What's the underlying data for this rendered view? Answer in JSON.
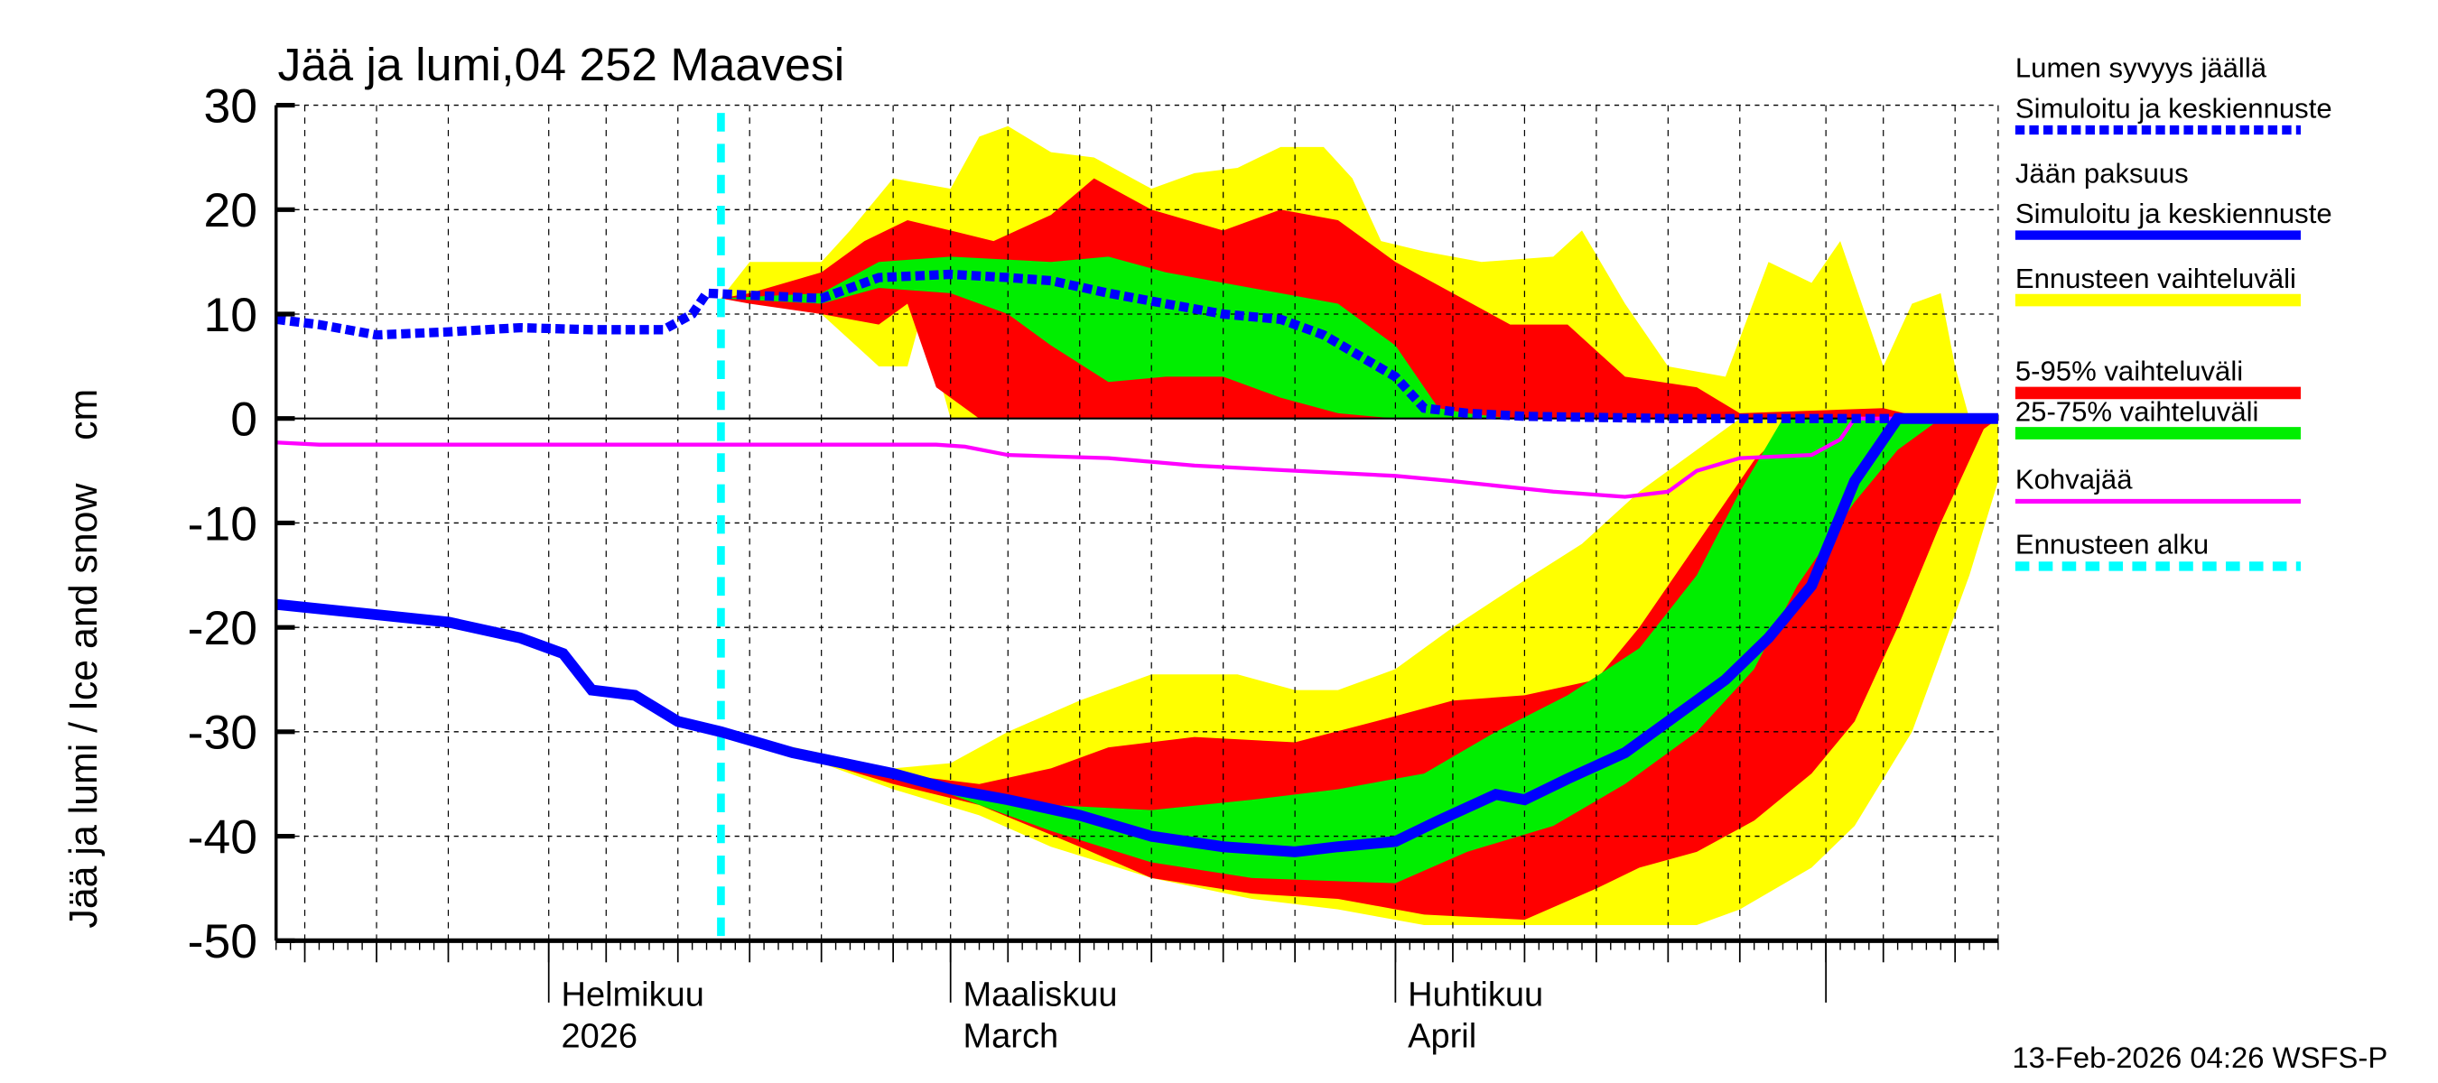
{
  "chart_data": {
    "type": "area",
    "title": "Jää ja lumi,04 252 Maavesi",
    "ylabel": "Jää ja lumi / Ice and snow    cm",
    "ylim": [
      -50,
      30
    ],
    "yticks": [
      30,
      20,
      10,
      0,
      -10,
      -20,
      -30,
      -40,
      -50
    ],
    "xlim": [
      "2026-01-13",
      "2026-05-13"
    ],
    "grid": true,
    "legend_placement": "right",
    "month_labels": [
      {
        "date": "2026-02-01",
        "line1": "Helmikuu",
        "line2": "2026"
      },
      {
        "date": "2026-03-01",
        "line1": "Maaliskuu",
        "line2": "March"
      },
      {
        "date": "2026-04-01",
        "line1": "Huhtikuu",
        "line2": "April"
      },
      {
        "date": "2026-05-01",
        "line1": "",
        "line2": ""
      }
    ],
    "forecast_start": "2026-02-13",
    "footer": "13-Feb-2026 04:26 WSFS-P",
    "colors": {
      "snow": "#0000ff",
      "ice": "#0000ff",
      "range": "#ffff00",
      "p5_95": "#ff0000",
      "p25_75": "#00ee00",
      "kohva": "#ff00ff",
      "forecast_start": "#00ffff"
    },
    "legend": [
      {
        "line1": "Lumen syvyys jäällä",
        "line2": "Simuloitu ja keskiennuste",
        "color": "#0000ff",
        "style": "dashed"
      },
      {
        "line1": "Jään paksuus",
        "line2": "Simuloitu ja keskiennuste",
        "color": "#0000ff",
        "style": "solid"
      },
      {
        "line1": "Ennusteen vaihteluväli",
        "line2": "",
        "color": "#ffff00",
        "style": "band"
      },
      {
        "line1": "5-95% vaihteluväli",
        "line2": "",
        "color": "#ff0000",
        "style": "band"
      },
      {
        "line1": "25-75% vaihteluväli",
        "line2": "",
        "color": "#00ee00",
        "style": "band"
      },
      {
        "line1": "Kohvajää",
        "line2": "",
        "color": "#ff00ff",
        "style": "thin"
      },
      {
        "line1": "Ennusteen alku",
        "line2": "",
        "color": "#00ffff",
        "style": "dashed"
      }
    ],
    "snow_bands": {
      "range_max": [
        [
          "2026-02-13",
          11.5
        ],
        [
          "2026-02-15",
          15
        ],
        [
          "2026-02-20",
          15
        ],
        [
          "2026-02-22",
          18
        ],
        [
          "2026-02-25",
          23
        ],
        [
          "2026-03-01",
          22
        ],
        [
          "2026-03-03",
          27
        ],
        [
          "2026-03-05",
          28
        ],
        [
          "2026-03-08",
          25.5
        ],
        [
          "2026-03-11",
          25
        ],
        [
          "2026-03-15",
          22
        ],
        [
          "2026-03-18",
          23.5
        ],
        [
          "2026-03-21",
          24
        ],
        [
          "2026-03-24",
          26
        ],
        [
          "2026-03-27",
          26
        ],
        [
          "2026-03-29",
          23
        ],
        [
          "2026-03-31",
          17
        ],
        [
          "2026-04-03",
          16
        ],
        [
          "2026-04-07",
          15
        ],
        [
          "2026-04-12",
          15.5
        ],
        [
          "2026-04-14",
          18
        ],
        [
          "2026-04-17",
          11
        ],
        [
          "2026-04-20",
          5
        ],
        [
          "2026-04-24",
          4
        ],
        [
          "2026-04-27",
          15
        ],
        [
          "2026-04-30",
          13
        ],
        [
          "2026-05-02",
          17
        ],
        [
          "2026-05-05",
          5
        ],
        [
          "2026-05-07",
          11
        ],
        [
          "2026-05-09",
          12
        ],
        [
          "2026-05-10",
          5
        ],
        [
          "2026-05-11",
          0
        ],
        [
          "2026-05-13",
          0
        ]
      ],
      "range_min": [
        [
          "2026-02-13",
          11.5
        ],
        [
          "2026-02-20",
          10
        ],
        [
          "2026-02-24",
          5
        ],
        [
          "2026-02-26",
          5
        ],
        [
          "2026-02-27",
          10
        ],
        [
          "2026-03-01",
          0
        ],
        [
          "2026-05-13",
          0
        ]
      ],
      "p95": [
        [
          "2026-02-13",
          11.5
        ],
        [
          "2026-02-15",
          12
        ],
        [
          "2026-02-20",
          14
        ],
        [
          "2026-02-23",
          17
        ],
        [
          "2026-02-26",
          19
        ],
        [
          "2026-03-01",
          18
        ],
        [
          "2026-03-04",
          17
        ],
        [
          "2026-03-08",
          19.5
        ],
        [
          "2026-03-11",
          23
        ],
        [
          "2026-03-15",
          20
        ],
        [
          "2026-03-20",
          18
        ],
        [
          "2026-03-24",
          20
        ],
        [
          "2026-03-28",
          19
        ],
        [
          "2026-04-01",
          15
        ],
        [
          "2026-04-05",
          12
        ],
        [
          "2026-04-09",
          9
        ],
        [
          "2026-04-13",
          9
        ],
        [
          "2026-04-17",
          4
        ],
        [
          "2026-04-22",
          3
        ],
        [
          "2026-04-25",
          0.5
        ],
        [
          "2026-05-05",
          1
        ],
        [
          "2026-05-08",
          0
        ],
        [
          "2026-05-13",
          0
        ]
      ],
      "p5": [
        [
          "2026-02-13",
          11.5
        ],
        [
          "2026-02-15",
          11
        ],
        [
          "2026-02-20",
          10
        ],
        [
          "2026-02-24",
          9
        ],
        [
          "2026-02-26",
          11
        ],
        [
          "2026-02-28",
          3
        ],
        [
          "2026-03-03",
          0
        ],
        [
          "2026-05-13",
          0
        ]
      ],
      "p75": [
        [
          "2026-02-13",
          11.5
        ],
        [
          "2026-02-20",
          12
        ],
        [
          "2026-02-24",
          15
        ],
        [
          "2026-03-01",
          15.5
        ],
        [
          "2026-03-08",
          15
        ],
        [
          "2026-03-12",
          15.5
        ],
        [
          "2026-03-16",
          14
        ],
        [
          "2026-03-20",
          13
        ],
        [
          "2026-03-24",
          12
        ],
        [
          "2026-03-28",
          11
        ],
        [
          "2026-04-01",
          7
        ],
        [
          "2026-04-04",
          1
        ],
        [
          "2026-04-06",
          0.5
        ],
        [
          "2026-04-09",
          0
        ],
        [
          "2026-05-13",
          0
        ]
      ],
      "p25": [
        [
          "2026-02-13",
          11.5
        ],
        [
          "2026-02-20",
          11
        ],
        [
          "2026-02-24",
          12.5
        ],
        [
          "2026-03-01",
          12
        ],
        [
          "2026-03-05",
          10
        ],
        [
          "2026-03-08",
          7
        ],
        [
          "2026-03-12",
          3.5
        ],
        [
          "2026-03-16",
          4
        ],
        [
          "2026-03-20",
          4
        ],
        [
          "2026-03-24",
          2
        ],
        [
          "2026-03-28",
          0.5
        ],
        [
          "2026-04-01",
          0
        ],
        [
          "2026-05-13",
          0
        ]
      ]
    },
    "ice_bands": {
      "range_max": [
        [
          "2026-02-13",
          -30
        ],
        [
          "2026-02-25",
          -33.5
        ],
        [
          "2026-03-01",
          -33
        ],
        [
          "2026-03-05",
          -30
        ],
        [
          "2026-03-10",
          -27
        ],
        [
          "2026-03-15",
          -24.5
        ],
        [
          "2026-03-21",
          -24.5
        ],
        [
          "2026-03-25",
          -26
        ],
        [
          "2026-03-28",
          -26
        ],
        [
          "2026-04-01",
          -24
        ],
        [
          "2026-04-05",
          -20
        ],
        [
          "2026-04-10",
          -15.5
        ],
        [
          "2026-04-14",
          -12
        ],
        [
          "2026-04-18",
          -7
        ],
        [
          "2026-04-22",
          -3
        ],
        [
          "2026-04-25",
          0
        ],
        [
          "2026-05-13",
          0
        ]
      ],
      "range_min": [
        [
          "2026-02-13",
          -30
        ],
        [
          "2026-02-20",
          -33
        ],
        [
          "2026-02-25",
          -35.5
        ],
        [
          "2026-03-03",
          -38
        ],
        [
          "2026-03-08",
          -41
        ],
        [
          "2026-03-15",
          -44
        ],
        [
          "2026-03-22",
          -46
        ],
        [
          "2026-03-28",
          -47
        ],
        [
          "2026-04-03",
          -48.5
        ],
        [
          "2026-04-22",
          -48.5
        ],
        [
          "2026-04-25",
          -47
        ],
        [
          "2026-04-30",
          -43
        ],
        [
          "2026-05-03",
          -39
        ],
        [
          "2026-05-07",
          -30
        ],
        [
          "2026-05-11",
          -15
        ],
        [
          "2026-05-13",
          -6
        ]
      ],
      "p95": [
        [
          "2026-02-13",
          -30
        ],
        [
          "2026-02-25",
          -34
        ],
        [
          "2026-03-03",
          -35
        ],
        [
          "2026-03-08",
          -33.5
        ],
        [
          "2026-03-12",
          -31.5
        ],
        [
          "2026-03-18",
          -30.5
        ],
        [
          "2026-03-25",
          -31
        ],
        [
          "2026-04-01",
          -28.5
        ],
        [
          "2026-04-05",
          -27
        ],
        [
          "2026-04-10",
          -26.5
        ],
        [
          "2026-04-15",
          -25
        ],
        [
          "2026-04-18",
          -20
        ],
        [
          "2026-04-22",
          -12
        ],
        [
          "2026-04-26",
          -4
        ],
        [
          "2026-04-29",
          0
        ],
        [
          "2026-05-13",
          0
        ]
      ],
      "p5": [
        [
          "2026-02-13",
          -30
        ],
        [
          "2026-02-25",
          -35
        ],
        [
          "2026-03-03",
          -37
        ],
        [
          "2026-03-10",
          -41
        ],
        [
          "2026-03-15",
          -44
        ],
        [
          "2026-03-22",
          -45.5
        ],
        [
          "2026-03-28",
          -46
        ],
        [
          "2026-04-03",
          -47.5
        ],
        [
          "2026-04-10",
          -48
        ],
        [
          "2026-04-15",
          -45
        ],
        [
          "2026-04-18",
          -43
        ],
        [
          "2026-04-22",
          -41.5
        ],
        [
          "2026-04-26",
          -38.5
        ],
        [
          "2026-04-30",
          -34
        ],
        [
          "2026-05-03",
          -29
        ],
        [
          "2026-05-06",
          -20
        ],
        [
          "2026-05-09",
          -10
        ],
        [
          "2026-05-12",
          -1
        ],
        [
          "2026-05-13",
          0
        ]
      ],
      "p75": [
        [
          "2026-02-13",
          -30
        ],
        [
          "2026-03-01",
          -35.5
        ],
        [
          "2026-03-08",
          -37
        ],
        [
          "2026-03-15",
          -37.5
        ],
        [
          "2026-03-22",
          -36.5
        ],
        [
          "2026-03-28",
          -35.5
        ],
        [
          "2026-04-03",
          -34
        ],
        [
          "2026-04-08",
          -30
        ],
        [
          "2026-04-13",
          -26.5
        ],
        [
          "2026-04-18",
          -22
        ],
        [
          "2026-04-22",
          -15
        ],
        [
          "2026-04-25",
          -7
        ],
        [
          "2026-04-28",
          0
        ],
        [
          "2026-05-13",
          0
        ]
      ],
      "p25": [
        [
          "2026-02-13",
          -30
        ],
        [
          "2026-03-01",
          -36
        ],
        [
          "2026-03-08",
          -39.5
        ],
        [
          "2026-03-15",
          -42.5
        ],
        [
          "2026-03-22",
          -44
        ],
        [
          "2026-04-01",
          -44.5
        ],
        [
          "2026-04-06",
          -41.5
        ],
        [
          "2026-04-12",
          -39
        ],
        [
          "2026-04-17",
          -35
        ],
        [
          "2026-04-22",
          -30
        ],
        [
          "2026-04-26",
          -24
        ],
        [
          "2026-04-29",
          -16
        ],
        [
          "2026-05-03",
          -8
        ],
        [
          "2026-05-06",
          -3
        ],
        [
          "2026-05-09",
          0
        ],
        [
          "2026-05-13",
          0
        ]
      ]
    },
    "snow_depth": [
      [
        "2026-01-13",
        9.5
      ],
      [
        "2026-01-16",
        9
      ],
      [
        "2026-01-20",
        8
      ],
      [
        "2026-01-25",
        8.3
      ],
      [
        "2026-01-30",
        8.7
      ],
      [
        "2026-02-04",
        8.5
      ],
      [
        "2026-02-09",
        8.5
      ],
      [
        "2026-02-11",
        10
      ],
      [
        "2026-02-12",
        12
      ],
      [
        "2026-02-15",
        11.8
      ],
      [
        "2026-02-20",
        11.5
      ],
      [
        "2026-02-24",
        13.5
      ],
      [
        "2026-03-01",
        13.8
      ],
      [
        "2026-03-05",
        13.5
      ],
      [
        "2026-03-08",
        13.2
      ],
      [
        "2026-03-12",
        12
      ],
      [
        "2026-03-16",
        11
      ],
      [
        "2026-03-20",
        10
      ],
      [
        "2026-03-24",
        9.5
      ],
      [
        "2026-03-27",
        8
      ],
      [
        "2026-04-01",
        4
      ],
      [
        "2026-04-03",
        1
      ],
      [
        "2026-04-06",
        0.5
      ],
      [
        "2026-04-10",
        0.2
      ],
      [
        "2026-04-20",
        0
      ],
      [
        "2026-05-13",
        0
      ]
    ],
    "ice_thickness": [
      [
        "2026-01-13",
        -17.8
      ],
      [
        "2026-01-18",
        -18.5
      ],
      [
        "2026-01-25",
        -19.5
      ],
      [
        "2026-01-30",
        -21
      ],
      [
        "2026-02-02",
        -22.5
      ],
      [
        "2026-02-04",
        -26
      ],
      [
        "2026-02-07",
        -26.5
      ],
      [
        "2026-02-10",
        -29
      ],
      [
        "2026-02-13",
        -30
      ],
      [
        "2026-02-18",
        -32
      ],
      [
        "2026-02-25",
        -34
      ],
      [
        "2026-03-01",
        -35.5
      ],
      [
        "2026-03-05",
        -36.5
      ],
      [
        "2026-03-10",
        -38
      ],
      [
        "2026-03-15",
        -40
      ],
      [
        "2026-03-20",
        -41
      ],
      [
        "2026-03-25",
        -41.5
      ],
      [
        "2026-03-28",
        -41
      ],
      [
        "2026-04-01",
        -40.5
      ],
      [
        "2026-04-04",
        -38.5
      ],
      [
        "2026-04-08",
        -36
      ],
      [
        "2026-04-10",
        -36.5
      ],
      [
        "2026-04-13",
        -34.5
      ],
      [
        "2026-04-17",
        -32
      ],
      [
        "2026-04-20",
        -29
      ],
      [
        "2026-04-24",
        -25
      ],
      [
        "2026-04-27",
        -21
      ],
      [
        "2026-04-30",
        -16
      ],
      [
        "2026-05-03",
        -6
      ],
      [
        "2026-05-06",
        0
      ],
      [
        "2026-05-13",
        0
      ]
    ],
    "kohvajaa": [
      [
        "2026-01-13",
        -2.3
      ],
      [
        "2026-01-16",
        -2.5
      ],
      [
        "2026-02-28",
        -2.5
      ],
      [
        "2026-03-02",
        -2.7
      ],
      [
        "2026-03-05",
        -3.5
      ],
      [
        "2026-03-12",
        -3.8
      ],
      [
        "2026-03-18",
        -4.5
      ],
      [
        "2026-03-25",
        -5
      ],
      [
        "2026-04-01",
        -5.5
      ],
      [
        "2026-04-05",
        -6
      ],
      [
        "2026-04-12",
        -7
      ],
      [
        "2026-04-17",
        -7.5
      ],
      [
        "2026-04-20",
        -7
      ],
      [
        "2026-04-22",
        -5
      ],
      [
        "2026-04-25",
        -3.8
      ],
      [
        "2026-04-30",
        -3.5
      ],
      [
        "2026-05-02",
        -2
      ],
      [
        "2026-05-03",
        0
      ],
      [
        "2026-05-13",
        0
      ]
    ]
  }
}
